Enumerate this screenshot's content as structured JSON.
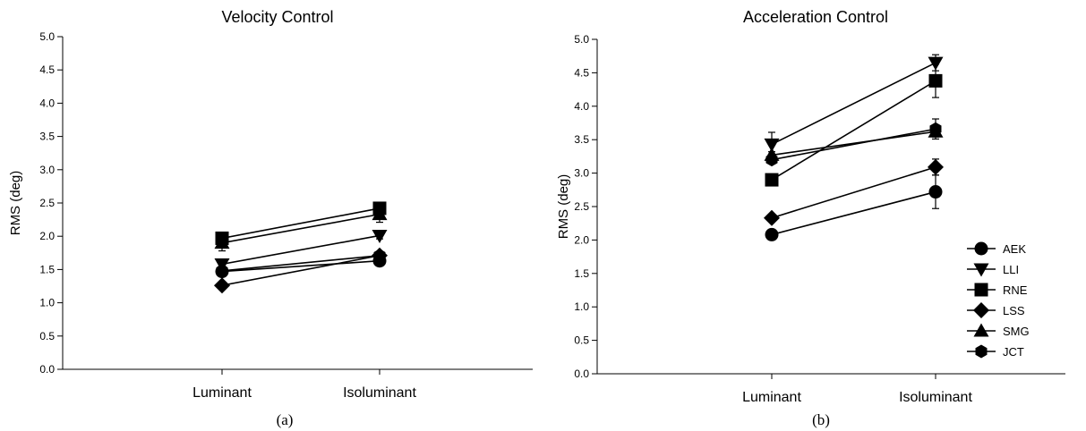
{
  "chart_data": [
    {
      "type": "line",
      "title": "Velocity Control",
      "xlabel": "",
      "ylabel": "RMS (deg)",
      "panel_label": "(a)",
      "categories": [
        "Luminant",
        "Isoluminant"
      ],
      "ylim": [
        0,
        5
      ],
      "yticks": [
        "0.0",
        "0.5",
        "1.0",
        "1.5",
        "2.0",
        "2.5",
        "3.0",
        "3.5",
        "4.0",
        "4.5",
        "5.0"
      ],
      "series": [
        {
          "name": "AEK",
          "marker": "circle",
          "values": [
            1.47,
            1.63
          ],
          "err": [
            0.05,
            0.05
          ]
        },
        {
          "name": "LLI",
          "marker": "triangle-down",
          "values": [
            1.58,
            2.01
          ],
          "err": [
            0.05,
            0.05
          ]
        },
        {
          "name": "RNE",
          "marker": "square",
          "values": [
            1.97,
            2.42
          ],
          "err": [
            0.05,
            0.05
          ]
        },
        {
          "name": "LSS",
          "marker": "diamond",
          "values": [
            1.26,
            1.71
          ],
          "err": [
            0.04,
            0.04
          ]
        },
        {
          "name": "SMG",
          "marker": "triangle-up",
          "values": [
            1.9,
            2.33
          ],
          "err": [
            0.12,
            0.12
          ]
        },
        {
          "name": "JCT",
          "marker": "hexagon",
          "values": [
            1.48,
            1.71
          ],
          "err": [
            0.04,
            0.04
          ]
        }
      ]
    },
    {
      "type": "line",
      "title": "Acceleration Control",
      "xlabel": "",
      "ylabel": "RMS (deg)",
      "panel_label": "(b)",
      "categories": [
        "Luminant",
        "Isoluminant"
      ],
      "ylim": [
        0,
        5
      ],
      "yticks": [
        "0.0",
        "0.5",
        "1.0",
        "1.5",
        "2.0",
        "2.5",
        "3.0",
        "3.5",
        "4.0",
        "4.5",
        "5.0"
      ],
      "legend_position": "bottom-right",
      "series": [
        {
          "name": "AEK",
          "marker": "circle",
          "values": [
            2.08,
            2.72
          ],
          "err": [
            0.05,
            0.25
          ]
        },
        {
          "name": "LLI",
          "marker": "triangle-down",
          "values": [
            3.43,
            4.65
          ],
          "err": [
            0.18,
            0.12
          ]
        },
        {
          "name": "RNE",
          "marker": "square",
          "values": [
            2.9,
            4.38
          ],
          "err": [
            0.05,
            0.25
          ]
        },
        {
          "name": "LSS",
          "marker": "diamond",
          "values": [
            2.33,
            3.09
          ],
          "err": [
            0.05,
            0.12
          ]
        },
        {
          "name": "SMG",
          "marker": "triangle-up",
          "values": [
            3.27,
            3.62
          ],
          "err": [
            0.05,
            0.08
          ]
        },
        {
          "name": "JCT",
          "marker": "hexagon",
          "values": [
            3.2,
            3.66
          ],
          "err": [
            0.05,
            0.15
          ]
        }
      ]
    }
  ]
}
